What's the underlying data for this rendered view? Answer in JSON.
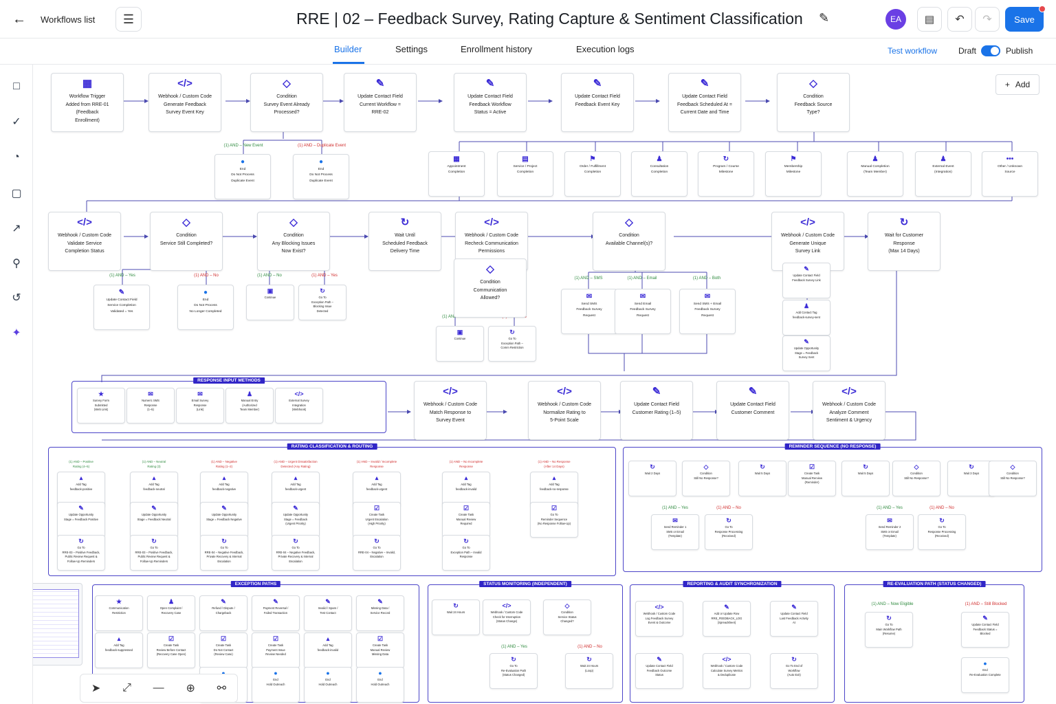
{
  "header": {
    "back_label": "Workflows list",
    "title": "RRE | 02 – Feedback Survey, Rating Capture & Sentiment Classification",
    "avatar": "EA",
    "save_label": "Save"
  },
  "tabs": [
    {
      "label": "Builder"
    },
    {
      "label": "Settings"
    },
    {
      "label": "Enrollment history"
    },
    {
      "label": "Execution logs"
    }
  ],
  "actions": {
    "test": "Test workflow",
    "draft": "Draft",
    "publish": "Publish",
    "add": "Add"
  },
  "colors": {
    "accent": "#1a73e8",
    "node_icon": "#3b2bd6",
    "group_border": "#4a43c8",
    "yes": "#2e8a3e",
    "no": "#d02c2c"
  },
  "rows": {
    "row1": [
      "Workflow Trigger\nAdded from RRE-01\n(Feedback\nEnrollment)",
      "Webhook / Custom Code\nGenerate Feedback\nSurvey Event Key",
      "Condition\nSurvey Event Already\nProcessed?",
      "Update Contact Field\nCurrent Workflow =\nRRE-02",
      "Update Contact Field\nFeedback Workflow\nStatus = Active",
      "Update Contact Field\nFeedback Event Key",
      "Update Contact Field\nFeedback Scheduled At =\nCurrent Date and Time",
      "Condition\nFeedback Source\nType?"
    ],
    "row1_branches": [
      "(1) AND – New Event",
      "(1) AND – Duplicate Event"
    ],
    "row1_ends": [
      "End\nDo Not Process\nDuplicate Event",
      "End\nDo Not Process\nDuplicate Event"
    ],
    "sources": [
      "Appointment\nCompletion",
      "Service / Project\nCompletion",
      "Order / Fulfillment\nCompletion",
      "Consultation\nCompletion",
      "Program / Course\nMilestone",
      "Membership\nMilestone",
      "Manual Completion\n(Team Member)",
      "External Event\n(Integration)",
      "Other / Unknown\nSource"
    ],
    "row3": [
      "Webhook / Custom Code\nValidate Service\nCompletion Status",
      "Condition\nService Still Completed?",
      "Condition\nAny Blocking Issues\nNow Exist?",
      "Wait Until\nScheduled Feedback\nDelivery Time",
      "Webhook / Custom Code\nRecheck Communication\nPermissions",
      "Condition\nAvailable Channel(s)?",
      "Webhook / Custom Code\nGenerate Unique\nSurvey Link",
      "Wait for Customer\nResponse\n(Max 14 Days)"
    ],
    "row3_labels": [
      "(1) AND – Yes",
      "(1) AND – No",
      "(1) AND – No",
      "(1) AND – Yes",
      "(1) AND – SMS",
      "(1) AND – Email",
      "(1) AND – Both",
      "(1) AND – Yes",
      "(1) AND – No"
    ],
    "row3_children": [
      "Update Contact Field\nService Completion\nValidated = Yes",
      "End\nDo Not Process\nNo Longer Completed",
      "Continue",
      "Go To\nException Path –\nBlocking Issue\nDetected",
      "Condition\nCommunication\nAllowed?",
      "Continue",
      "Go To\nException Path –\nComm Restriction",
      "Send SMS\nFeedback Survey\nRequest",
      "Send Email\nFeedback Survey\nRequest",
      "Send SMS + Email\nFeedback Survey\nRequest",
      "Update Contact Field\nFeedback Survey Link",
      "Add Contact Tag\nfeedback-survey-sent",
      "Update Opportunity\nStage = Feedback\nSurvey Sent"
    ],
    "groups": [
      "RESPONSE INPUT METHODS",
      "RATING CLASSIFICATION & ROUTING",
      "REMINDER SEQUENCE (NO RESPONSE)",
      "EXCEPTION PATHS",
      "STATUS MONITORING (INDEPENDENT)",
      "REPORTING & AUDIT SYNCHRONIZATION",
      "RE-EVALUATION PATH (STATUS CHANGED)"
    ],
    "inputs": [
      "Survey Form\nSubmitted\n(Web Link)",
      "Numeric SMS\nResponse\n(1–5)",
      "Email Survey\nResponse\n(Link)",
      "Manual Entry\n(Authorized\nTeam Member)",
      "External Survey\nIntegration\n(Webhook)"
    ],
    "row4": [
      "Webhook / Custom Code\nMatch Response to\nSurvey Event",
      "Webhook / Custom Code\nNormalize Rating to\n5-Point Scale",
      "Update Contact Field\nCustomer Rating (1–5)",
      "Update Contact Field\nCustomer Comment",
      "Webhook / Custom Code\nAnalyze Comment\nSentiment & Urgency"
    ],
    "rating_labels": [
      "(1) AND – Positive\nRating (4–5)",
      "(1) AND – Neutral\nRating (3)",
      "(1) AND – Negative\nRating (1–2)",
      "(1) AND – Urgent Dissatisfaction\nDetected (Any Rating)",
      "(1) AND – Invalid / Incomplete\nResponse",
      "(1) AND – No Incomplete\nResponse",
      "(1) AND – No Response\n(After 14 Days)"
    ],
    "rating_tags": [
      "Add Tag\nfeedback-positive",
      "Add Tag\nfeedback-neutral",
      "Add Tag\nfeedback-negative",
      "Add Tag\nfeedback-urgent",
      "Add Tag\nfeedback-urgent",
      "Add Tag\nfeedback-invalid",
      "Add Tag\nfeedback-no-response"
    ],
    "rating_mid": [
      "Update Opportunity\nStage = Feedback Positive",
      "Update Opportunity\nStage = Feedback Neutral",
      "Update Opportunity\nStage = Feedback Negative",
      "Update Opportunity\nStage = Feedback\n(Urgent Priority)",
      "Create Task\nUrgent Escalation\n(High Priority)",
      "Create Task\nManual Review\nRequired",
      "Go To\nReminder Sequence\n(No Response Follow-Up)"
    ],
    "rating_end": [
      "Go To\nRRE-03 – Positive Feedback,\nPublic Review Request &\nFollow-Up Reminders",
      "Go To\nRRE-03 – Positive Feedback,\nPublic Review Request &\nFollow-Up Reminders",
      "Go To\nRRE-04 – Negative Feedback,\nPrivate Recovery & Internal\nEscalation",
      "Go To\nRRE-04 – Negative Feedback,\nPrivate Recovery & Internal\nEscalation",
      "Go To\nRRE-04 – Negative – Invalid,\nEscalation",
      "Go To\nException Path – Invalid\nResponse"
    ],
    "reminder": [
      "Wait 2 Days",
      "Condition\nStill No Response?",
      "Wait 5 Days",
      "Create Task\nManual Rerview\n(Reminder)",
      "Wait 5 Days",
      "Condition\nStill No Response?",
      "Wait 3 Days",
      "Condition\nStill No Response?"
    ],
    "reminder_labels": [
      "(1) AND – Yes",
      "(1) AND – No",
      "(1) AND – Yes",
      "(1) AND – No"
    ],
    "reminder_children": [
      "Send Reminder 1\nSMS or Email\n(Template)",
      "Go To\nResponse Processing\n(Received)",
      "Send Reminder 2\nSMS or Email\n(Template)",
      "Go To\nResponse Processing\n(Received)"
    ],
    "exceptions": [
      "Communication\nRestriction",
      "Open Complaint /\nRecovery Case",
      "Refund / Dispute /\nChargeback",
      "Payment Reversal /\nFailed Transaction",
      "Invalid / Spam /\nTest Contact",
      "Missing Data /\nService Record"
    ],
    "exceptions_mid": [
      "Add Tag\nfeedback-suppressed",
      "Create Task\nReview Before Contact\n(Recovery Case Open)",
      "Create Task\nDo Not Contact\n(Review Case)",
      "Create Task\nPayment Issue\nReview Needed",
      "Add Tag\nfeedback-invalid",
      "Create Task\nManual Review\nMissing Data"
    ],
    "exceptions_end": [
      "End\nHold Outreach",
      "End\nHold Outreach",
      "End\nHold Outreach",
      "End\nHold Outreach"
    ],
    "status": [
      "Wait 24 Hours",
      "Webhook / Custom Code\nCheck for Interruption\n(Status Change)",
      "Condition\nService Status\nChanged?"
    ],
    "status_labels": [
      "(1) AND – Yes",
      "(1) AND – No"
    ],
    "status_children": [
      "Go To\nRe-Evaluation Path\n(Status Changed)",
      "Wait 24 Hours\n(Loop)"
    ],
    "reporting": [
      "Webhook / Custom Code\nLog Feedback Survey\nEvent & Outcome",
      "Add or Update Row\nRRE_FEEDBACK_LOG\n(Spreadsheet)",
      "Update Contact Field\nLast Feedback Activity\nAt",
      "Update Contact Field\nFeedback Outcome\nStatus",
      "Webhook / Custom Code\nCalculate Survey Metrics\n& Deduplicate",
      "Go To End of\nWorkflow\n(Auto Exit)"
    ],
    "reeval_labels": [
      "(1) AND – Now Eligible",
      "(1) AND – Still Blocked"
    ],
    "reeval": [
      "Go To\nMain Workflow Path\n(Resume)",
      "Update Contact Field\nFeedback Status =\nBlocked",
      "End\nRe-Evaluation Complete"
    ]
  }
}
